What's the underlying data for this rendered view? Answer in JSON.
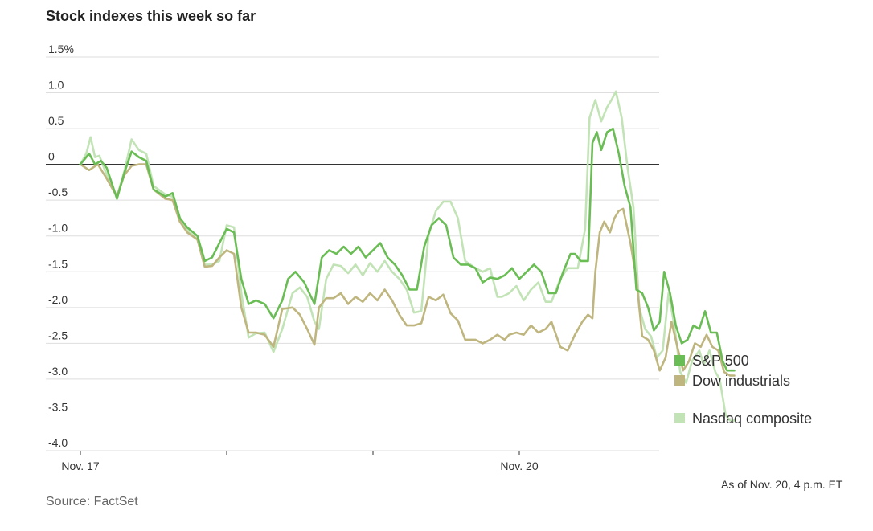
{
  "title": "Stock indexes this week so far",
  "note": "As of Nov. 20, 4 p.m. ET",
  "source": "Source: FactSet",
  "chart_data": {
    "type": "line",
    "title": "Stock indexes this week so far",
    "ylim": [
      -4.0,
      1.5
    ],
    "yticks": [
      1.5,
      1.0,
      0.5,
      0,
      -0.5,
      -1.0,
      -1.5,
      -2.0,
      -2.5,
      -3.0,
      -3.5,
      -4.0
    ],
    "ytick_labels": [
      "1.5%",
      "1.0",
      "0.5",
      "0",
      "-0.5",
      "-1.0",
      "-1.5",
      "-2.0",
      "-2.5",
      "-3.0",
      "-3.5",
      "-4.0"
    ],
    "xlim": [
      0,
      4
    ],
    "xticks": [
      0,
      1,
      2,
      3
    ],
    "xtick_labels": [
      "Nov. 17",
      "",
      "",
      "Nov. 20"
    ],
    "grid": true,
    "legend_position": "right",
    "series": [
      {
        "name": "Nasdaq composite",
        "color": "#c2e3b6",
        "points": [
          [
            0.0,
            0.0
          ],
          [
            0.04,
            0.15
          ],
          [
            0.07,
            0.38
          ],
          [
            0.1,
            0.1
          ],
          [
            0.13,
            0.12
          ],
          [
            0.18,
            -0.15
          ],
          [
            0.25,
            -0.45
          ],
          [
            0.3,
            -0.1
          ],
          [
            0.35,
            0.35
          ],
          [
            0.4,
            0.2
          ],
          [
            0.45,
            0.15
          ],
          [
            0.5,
            -0.3
          ],
          [
            0.58,
            -0.42
          ],
          [
            0.63,
            -0.45
          ],
          [
            0.68,
            -0.8
          ],
          [
            0.73,
            -0.92
          ],
          [
            0.8,
            -1.05
          ],
          [
            0.85,
            -1.4
          ],
          [
            0.9,
            -1.4
          ],
          [
            0.95,
            -1.35
          ],
          [
            1.0,
            -0.85
          ],
          [
            1.05,
            -0.88
          ],
          [
            1.1,
            -1.8
          ],
          [
            1.15,
            -2.42
          ],
          [
            1.2,
            -2.36
          ],
          [
            1.26,
            -2.35
          ],
          [
            1.32,
            -2.62
          ],
          [
            1.38,
            -2.3
          ],
          [
            1.45,
            -1.8
          ],
          [
            1.5,
            -1.72
          ],
          [
            1.55,
            -1.85
          ],
          [
            1.6,
            -2.2
          ],
          [
            1.63,
            -2.3
          ],
          [
            1.68,
            -1.6
          ],
          [
            1.73,
            -1.4
          ],
          [
            1.78,
            -1.42
          ],
          [
            1.83,
            -1.52
          ],
          [
            1.88,
            -1.4
          ],
          [
            1.93,
            -1.55
          ],
          [
            1.98,
            -1.38
          ],
          [
            2.03,
            -1.5
          ],
          [
            2.08,
            -1.35
          ],
          [
            2.13,
            -1.5
          ],
          [
            2.18,
            -1.6
          ],
          [
            2.23,
            -1.75
          ],
          [
            2.28,
            -2.07
          ],
          [
            2.33,
            -2.05
          ],
          [
            2.38,
            -0.98
          ],
          [
            2.43,
            -0.65
          ],
          [
            2.48,
            -0.52
          ],
          [
            2.53,
            -0.52
          ],
          [
            2.58,
            -0.75
          ],
          [
            2.63,
            -1.35
          ],
          [
            2.7,
            -1.45
          ],
          [
            2.75,
            -1.5
          ],
          [
            2.8,
            -1.45
          ],
          [
            2.85,
            -1.85
          ],
          [
            2.88,
            -1.85
          ],
          [
            2.93,
            -1.8
          ],
          [
            2.98,
            -1.7
          ],
          [
            3.03,
            -1.9
          ],
          [
            3.08,
            -1.75
          ],
          [
            3.13,
            -1.65
          ],
          [
            3.18,
            -1.92
          ],
          [
            3.22,
            -1.92
          ],
          [
            3.28,
            -1.6
          ],
          [
            3.33,
            -1.45
          ],
          [
            3.38,
            -1.45
          ],
          [
            3.4,
            -1.45
          ],
          [
            3.45,
            -0.9
          ],
          [
            3.48,
            0.65
          ],
          [
            3.52,
            0.9
          ],
          [
            3.56,
            0.6
          ],
          [
            3.6,
            0.8
          ],
          [
            3.63,
            0.9
          ],
          [
            3.66,
            1.02
          ],
          [
            3.7,
            0.65
          ],
          [
            3.74,
            -0.05
          ],
          [
            3.78,
            -0.6
          ],
          [
            3.82,
            -2.0
          ],
          [
            3.86,
            -2.3
          ],
          [
            3.9,
            -2.4
          ],
          [
            3.94,
            -2.7
          ],
          [
            3.98,
            -2.6
          ],
          [
            4.02,
            -1.8
          ],
          [
            4.06,
            -2.25
          ],
          [
            4.1,
            -2.9
          ],
          [
            4.14,
            -3.05
          ],
          [
            4.18,
            -2.75
          ],
          [
            4.23,
            -2.6
          ],
          [
            4.26,
            -2.8
          ],
          [
            4.3,
            -2.6
          ],
          [
            4.34,
            -2.9
          ],
          [
            4.37,
            -3.0
          ],
          [
            4.41,
            -3.5
          ],
          [
            4.44,
            -3.58
          ],
          [
            4.47,
            -3.58
          ]
        ]
      },
      {
        "name": "Dow industrials",
        "color": "#bfb67f",
        "points": [
          [
            0.0,
            0.0
          ],
          [
            0.06,
            -0.08
          ],
          [
            0.12,
            0.0
          ],
          [
            0.18,
            -0.2
          ],
          [
            0.25,
            -0.45
          ],
          [
            0.3,
            -0.15
          ],
          [
            0.35,
            -0.02
          ],
          [
            0.4,
            0.0
          ],
          [
            0.45,
            0.0
          ],
          [
            0.5,
            -0.35
          ],
          [
            0.58,
            -0.48
          ],
          [
            0.63,
            -0.5
          ],
          [
            0.68,
            -0.8
          ],
          [
            0.73,
            -0.95
          ],
          [
            0.8,
            -1.05
          ],
          [
            0.85,
            -1.43
          ],
          [
            0.9,
            -1.42
          ],
          [
            0.95,
            -1.3
          ],
          [
            1.0,
            -1.2
          ],
          [
            1.05,
            -1.25
          ],
          [
            1.1,
            -2.0
          ],
          [
            1.15,
            -2.35
          ],
          [
            1.2,
            -2.35
          ],
          [
            1.26,
            -2.38
          ],
          [
            1.32,
            -2.55
          ],
          [
            1.38,
            -2.02
          ],
          [
            1.45,
            -2.0
          ],
          [
            1.5,
            -2.1
          ],
          [
            1.55,
            -2.3
          ],
          [
            1.6,
            -2.52
          ],
          [
            1.63,
            -2.0
          ],
          [
            1.68,
            -1.87
          ],
          [
            1.73,
            -1.87
          ],
          [
            1.78,
            -1.8
          ],
          [
            1.83,
            -1.95
          ],
          [
            1.88,
            -1.85
          ],
          [
            1.93,
            -1.92
          ],
          [
            1.98,
            -1.8
          ],
          [
            2.03,
            -1.9
          ],
          [
            2.08,
            -1.75
          ],
          [
            2.13,
            -1.9
          ],
          [
            2.18,
            -2.1
          ],
          [
            2.23,
            -2.25
          ],
          [
            2.28,
            -2.25
          ],
          [
            2.33,
            -2.22
          ],
          [
            2.38,
            -1.85
          ],
          [
            2.43,
            -1.9
          ],
          [
            2.48,
            -1.82
          ],
          [
            2.53,
            -2.08
          ],
          [
            2.58,
            -2.18
          ],
          [
            2.63,
            -2.45
          ],
          [
            2.7,
            -2.45
          ],
          [
            2.75,
            -2.5
          ],
          [
            2.8,
            -2.45
          ],
          [
            2.85,
            -2.38
          ],
          [
            2.9,
            -2.45
          ],
          [
            2.93,
            -2.38
          ],
          [
            2.98,
            -2.35
          ],
          [
            3.03,
            -2.38
          ],
          [
            3.08,
            -2.25
          ],
          [
            3.13,
            -2.35
          ],
          [
            3.18,
            -2.3
          ],
          [
            3.22,
            -2.2
          ],
          [
            3.28,
            -2.55
          ],
          [
            3.33,
            -2.6
          ],
          [
            3.38,
            -2.38
          ],
          [
            3.43,
            -2.2
          ],
          [
            3.47,
            -2.1
          ],
          [
            3.5,
            -2.15
          ],
          [
            3.52,
            -1.5
          ],
          [
            3.55,
            -0.95
          ],
          [
            3.58,
            -0.8
          ],
          [
            3.62,
            -0.95
          ],
          [
            3.65,
            -0.75
          ],
          [
            3.68,
            -0.65
          ],
          [
            3.71,
            -0.62
          ],
          [
            3.76,
            -1.1
          ],
          [
            3.8,
            -1.6
          ],
          [
            3.84,
            -2.4
          ],
          [
            3.88,
            -2.45
          ],
          [
            3.92,
            -2.6
          ],
          [
            3.96,
            -2.88
          ],
          [
            4.0,
            -2.7
          ],
          [
            4.04,
            -2.2
          ],
          [
            4.08,
            -2.55
          ],
          [
            4.12,
            -2.88
          ],
          [
            4.16,
            -2.75
          ],
          [
            4.2,
            -2.5
          ],
          [
            4.24,
            -2.55
          ],
          [
            4.28,
            -2.38
          ],
          [
            4.32,
            -2.55
          ],
          [
            4.36,
            -2.6
          ],
          [
            4.4,
            -2.9
          ],
          [
            4.44,
            -2.95
          ],
          [
            4.47,
            -2.95
          ]
        ]
      },
      {
        "name": "S&P 500",
        "color": "#6abd54",
        "points": [
          [
            0.0,
            0.0
          ],
          [
            0.06,
            0.15
          ],
          [
            0.1,
            0.0
          ],
          [
            0.14,
            0.05
          ],
          [
            0.18,
            -0.05
          ],
          [
            0.25,
            -0.48
          ],
          [
            0.3,
            -0.12
          ],
          [
            0.35,
            0.18
          ],
          [
            0.4,
            0.1
          ],
          [
            0.45,
            0.05
          ],
          [
            0.5,
            -0.35
          ],
          [
            0.58,
            -0.45
          ],
          [
            0.63,
            -0.4
          ],
          [
            0.68,
            -0.75
          ],
          [
            0.73,
            -0.88
          ],
          [
            0.8,
            -1.0
          ],
          [
            0.85,
            -1.35
          ],
          [
            0.9,
            -1.3
          ],
          [
            0.95,
            -1.1
          ],
          [
            1.0,
            -0.9
          ],
          [
            1.05,
            -0.95
          ],
          [
            1.1,
            -1.6
          ],
          [
            1.15,
            -1.95
          ],
          [
            1.2,
            -1.9
          ],
          [
            1.26,
            -1.95
          ],
          [
            1.32,
            -2.15
          ],
          [
            1.38,
            -1.9
          ],
          [
            1.42,
            -1.6
          ],
          [
            1.47,
            -1.5
          ],
          [
            1.53,
            -1.65
          ],
          [
            1.6,
            -1.95
          ],
          [
            1.65,
            -1.3
          ],
          [
            1.7,
            -1.2
          ],
          [
            1.75,
            -1.25
          ],
          [
            1.8,
            -1.15
          ],
          [
            1.85,
            -1.25
          ],
          [
            1.9,
            -1.15
          ],
          [
            1.95,
            -1.3
          ],
          [
            2.0,
            -1.2
          ],
          [
            2.05,
            -1.1
          ],
          [
            2.1,
            -1.3
          ],
          [
            2.15,
            -1.4
          ],
          [
            2.2,
            -1.55
          ],
          [
            2.25,
            -1.75
          ],
          [
            2.3,
            -1.75
          ],
          [
            2.35,
            -1.15
          ],
          [
            2.4,
            -0.85
          ],
          [
            2.45,
            -0.75
          ],
          [
            2.5,
            -0.85
          ],
          [
            2.55,
            -1.3
          ],
          [
            2.6,
            -1.4
          ],
          [
            2.65,
            -1.4
          ],
          [
            2.7,
            -1.45
          ],
          [
            2.75,
            -1.65
          ],
          [
            2.8,
            -1.58
          ],
          [
            2.85,
            -1.6
          ],
          [
            2.9,
            -1.55
          ],
          [
            2.95,
            -1.45
          ],
          [
            3.0,
            -1.6
          ],
          [
            3.05,
            -1.5
          ],
          [
            3.1,
            -1.4
          ],
          [
            3.15,
            -1.5
          ],
          [
            3.2,
            -1.8
          ],
          [
            3.25,
            -1.8
          ],
          [
            3.3,
            -1.5
          ],
          [
            3.35,
            -1.25
          ],
          [
            3.38,
            -1.25
          ],
          [
            3.42,
            -1.35
          ],
          [
            3.47,
            -1.35
          ],
          [
            3.5,
            0.3
          ],
          [
            3.53,
            0.45
          ],
          [
            3.56,
            0.2
          ],
          [
            3.6,
            0.45
          ],
          [
            3.64,
            0.5
          ],
          [
            3.68,
            0.15
          ],
          [
            3.72,
            -0.3
          ],
          [
            3.76,
            -0.6
          ],
          [
            3.8,
            -1.75
          ],
          [
            3.84,
            -1.8
          ],
          [
            3.88,
            -2.0
          ],
          [
            3.92,
            -2.32
          ],
          [
            3.96,
            -2.2
          ],
          [
            3.99,
            -1.5
          ],
          [
            4.03,
            -1.8
          ],
          [
            4.07,
            -2.25
          ],
          [
            4.11,
            -2.5
          ],
          [
            4.15,
            -2.45
          ],
          [
            4.19,
            -2.25
          ],
          [
            4.23,
            -2.3
          ],
          [
            4.27,
            -2.05
          ],
          [
            4.31,
            -2.35
          ],
          [
            4.35,
            -2.35
          ],
          [
            4.39,
            -2.75
          ],
          [
            4.42,
            -2.88
          ],
          [
            4.47,
            -2.88
          ]
        ]
      }
    ]
  },
  "legend": [
    {
      "name": "S&P 500",
      "color": "#6abd54"
    },
    {
      "name": "Dow industrials",
      "color": "#bfb67f"
    },
    {
      "name": "Nasdaq composite",
      "color": "#c2e3b6"
    }
  ]
}
